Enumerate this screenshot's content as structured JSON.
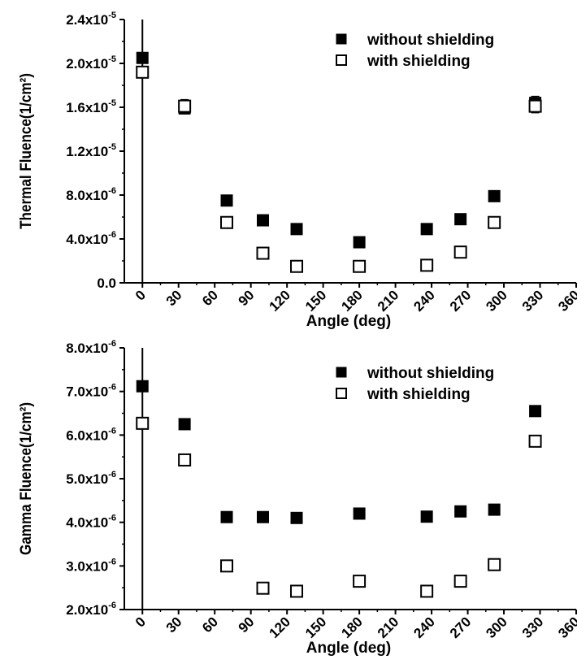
{
  "chart_data": [
    {
      "type": "scatter",
      "xlabel": "Angle (deg)",
      "ylabel": "Thermal Fluence(1/cm²)",
      "xlim": [
        -15,
        360
      ],
      "ylim": [
        0,
        2.4e-05
      ],
      "x_ticks": [
        0,
        30,
        60,
        90,
        120,
        150,
        180,
        210,
        240,
        270,
        300,
        330,
        360
      ],
      "x_tick_labels": [
        "0",
        "30",
        "60",
        "90",
        "120",
        "150",
        "180",
        "210",
        "240",
        "270",
        "300",
        "330",
        "360"
      ],
      "y_ticks": [
        0,
        4e-06,
        8e-06,
        1.2e-05,
        1.6e-05,
        2e-05,
        2.4e-05
      ],
      "y_tick_labels": [
        {
          "mantissa": "0.0",
          "exp": ""
        },
        {
          "mantissa": "4.0x10",
          "exp": "-6"
        },
        {
          "mantissa": "8.0x10",
          "exp": "-6"
        },
        {
          "mantissa": "1.2x10",
          "exp": "-5"
        },
        {
          "mantissa": "1.6x10",
          "exp": "-5"
        },
        {
          "mantissa": "2.0x10",
          "exp": "-5"
        },
        {
          "mantissa": "2.4x10",
          "exp": "-5"
        }
      ],
      "vline_x": 0,
      "legend_position": "top-right",
      "series": [
        {
          "name": "without shielding",
          "marker": "filled-square",
          "x": [
            0,
            35,
            70,
            100,
            128,
            180,
            236,
            264,
            292,
            326
          ],
          "y": [
            2.05e-05,
            1.59e-05,
            7.5e-06,
            5.7e-06,
            4.9e-06,
            3.7e-06,
            4.9e-06,
            5.8e-06,
            7.9e-06,
            1.64e-05
          ],
          "err": [
            0,
            5e-07,
            0,
            0,
            0,
            0,
            0,
            0,
            0,
            6e-07
          ]
        },
        {
          "name": "with shielding",
          "marker": "open-square",
          "x": [
            0,
            35,
            70,
            100,
            128,
            180,
            236,
            264,
            292,
            326
          ],
          "y": [
            1.92e-05,
            1.61e-05,
            5.5e-06,
            2.7e-06,
            1.5e-06,
            1.5e-06,
            1.6e-06,
            2.8e-06,
            5.5e-06,
            1.61e-05
          ],
          "err": [
            0,
            6e-07,
            2e-07,
            3e-07,
            2e-07,
            2e-07,
            2e-07,
            2e-07,
            2e-07,
            6e-07
          ]
        }
      ]
    },
    {
      "type": "scatter",
      "xlabel": "Angle (deg)",
      "ylabel": "Gamma Fluence(1/cm²)",
      "xlim": [
        -15,
        360
      ],
      "ylim": [
        2e-06,
        8e-06
      ],
      "x_ticks": [
        0,
        30,
        60,
        90,
        120,
        150,
        180,
        210,
        240,
        270,
        300,
        330,
        360
      ],
      "x_tick_labels": [
        "0",
        "30",
        "60",
        "90",
        "120",
        "150",
        "180",
        "210",
        "240",
        "270",
        "300",
        "330",
        "360"
      ],
      "y_ticks": [
        2e-06,
        3e-06,
        4e-06,
        5e-06,
        6e-06,
        7e-06,
        8e-06
      ],
      "y_tick_labels": [
        {
          "mantissa": "2.0x10",
          "exp": "-6"
        },
        {
          "mantissa": "3.0x10",
          "exp": "-6"
        },
        {
          "mantissa": "4.0x10",
          "exp": "-6"
        },
        {
          "mantissa": "5.0x10",
          "exp": "-6"
        },
        {
          "mantissa": "6.0x10",
          "exp": "-6"
        },
        {
          "mantissa": "7.0x10",
          "exp": "-6"
        },
        {
          "mantissa": "8.0x10",
          "exp": "-6"
        }
      ],
      "vline_x": 0,
      "legend_position": "top-right",
      "series": [
        {
          "name": "without shielding",
          "marker": "filled-square",
          "x": [
            0,
            35,
            70,
            100,
            128,
            180,
            236,
            264,
            292,
            326
          ],
          "y": [
            7.12e-06,
            6.25e-06,
            4.12e-06,
            4.12e-06,
            4.1e-06,
            4.2e-06,
            4.13e-06,
            4.25e-06,
            4.29e-06,
            6.55e-06
          ],
          "err": [
            0,
            0,
            0,
            0,
            0,
            0,
            0,
            0,
            0,
            0
          ]
        },
        {
          "name": "with shielding",
          "marker": "open-square",
          "x": [
            0,
            35,
            70,
            100,
            128,
            180,
            236,
            264,
            292,
            326
          ],
          "y": [
            6.27e-06,
            5.43e-06,
            3e-06,
            2.49e-06,
            2.42e-06,
            2.65e-06,
            2.42e-06,
            2.65e-06,
            3.03e-06,
            5.86e-06
          ],
          "err": [
            0,
            0,
            0,
            7e-08,
            7e-08,
            7e-08,
            7e-08,
            7e-08,
            7e-08,
            1.3e-07
          ]
        }
      ]
    }
  ]
}
